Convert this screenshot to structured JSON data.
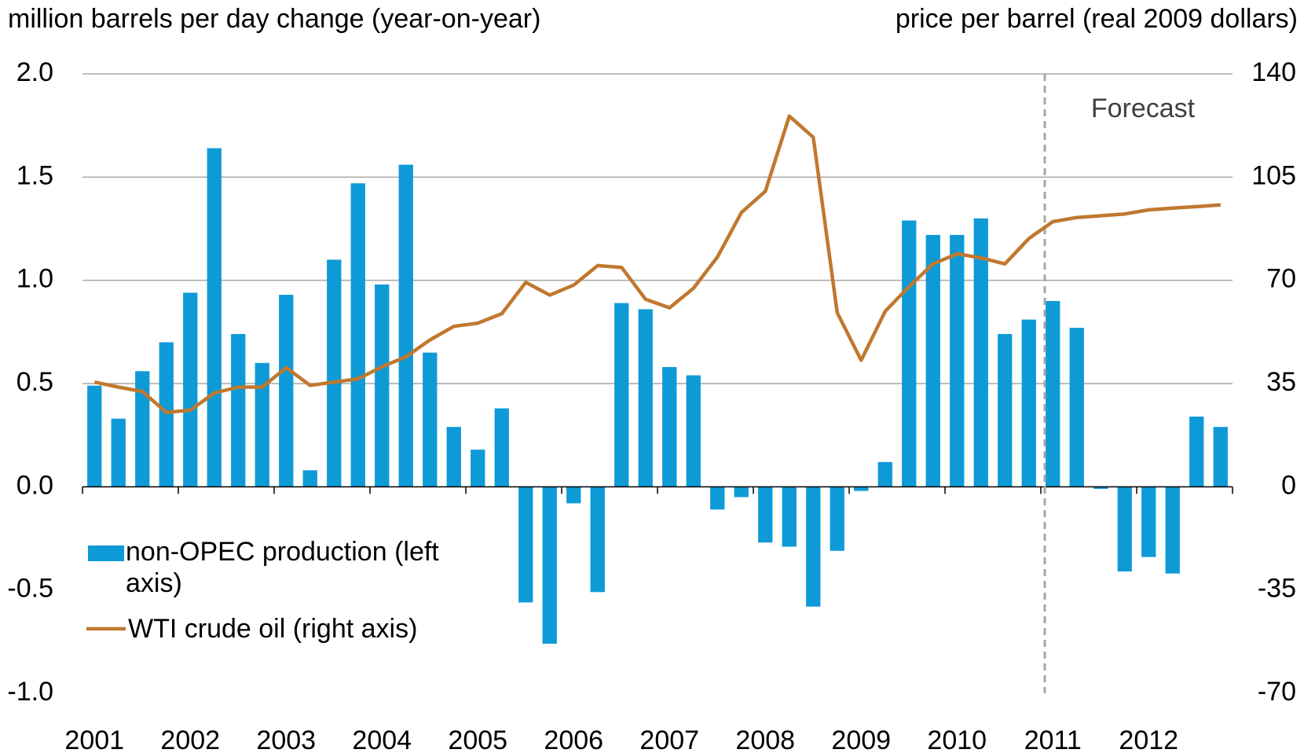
{
  "chart_data": {
    "type": "bar_line",
    "y_label": "million barrels per day change (year-on-year)",
    "y2_label": "price per barrel (real 2009 dollars)",
    "annotation": "Forecast",
    "categories": [
      "2001",
      null,
      null,
      null,
      "2002",
      null,
      null,
      null,
      "2003",
      null,
      null,
      null,
      "2004",
      null,
      null,
      null,
      "2005",
      null,
      null,
      null,
      "2006",
      null,
      null,
      null,
      "2007",
      null,
      null,
      null,
      "2008",
      null,
      null,
      null,
      "2009",
      null,
      null,
      null,
      "2010",
      null,
      null,
      null,
      "2011",
      null,
      null,
      null,
      "2012",
      null,
      null,
      null
    ],
    "ylim": [
      -1.0,
      2.0
    ],
    "yticks": [
      {
        "value": 2,
        "label": "2.0"
      },
      1.5,
      {
        "value": 1,
        "label": "1.0"
      },
      0.5,
      {
        "value": 0,
        "label": "0.0"
      },
      -0.5,
      {
        "value": -1,
        "label": "-1.0"
      }
    ],
    "y2lim": [
      -70,
      140
    ],
    "y2ticks": [
      140,
      105,
      70,
      35,
      0,
      -35,
      -70
    ],
    "grid": true,
    "series": [
      {
        "name": "non-OPEC production (left axis)",
        "type": "bar",
        "color": "#0e9ad7",
        "values": [
          0.49,
          0.33,
          0.56,
          0.7,
          0.94,
          1.64,
          0.74,
          0.6,
          0.93,
          0.08,
          1.1,
          1.47,
          0.98,
          1.56,
          0.65,
          0.29,
          0.18,
          0.38,
          -0.56,
          -0.76,
          -0.08,
          -0.51,
          0.89,
          0.86,
          0.58,
          0.54,
          -0.11,
          -0.05,
          -0.27,
          -0.29,
          -0.58,
          -0.31,
          -0.02,
          0.12,
          1.29,
          1.22,
          1.22,
          1.3,
          0.74,
          0.81,
          0.9,
          0.77,
          -0.01,
          -0.41,
          -0.34,
          -0.42,
          0.34,
          0.29
        ]
      },
      {
        "name": "WTI crude oil (right axis)",
        "type": "line",
        "axis": "y2",
        "color": "#c0782f",
        "values": [
          35.5,
          33.8,
          32.3,
          25.2,
          26,
          31.8,
          33.8,
          33.8,
          40.4,
          34.4,
          35.5,
          36.6,
          40.7,
          44.1,
          49.8,
          54.4,
          55.5,
          58.7,
          69.3,
          65,
          68.4,
          75,
          74.4,
          63.6,
          60.7,
          67.3,
          77.9,
          93,
          100.2,
          125.7,
          118.5,
          59,
          42.9,
          59.5,
          67.9,
          75.6,
          79,
          77.6,
          75.6,
          84.2,
          89.9,
          91.3,
          91.9,
          92.5,
          93.9,
          94.5,
          95,
          95.6
        ]
      }
    ]
  }
}
